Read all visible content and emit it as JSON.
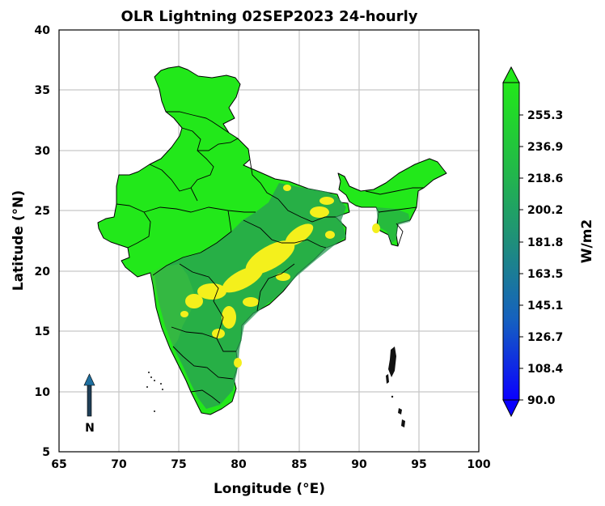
{
  "chart_data": {
    "type": "map",
    "title": "OLR Lightning 02SEP2023 24-hourly",
    "xlabel": "Longitude (°E)",
    "ylabel": "Latitude (°N)",
    "xlim": [
      65,
      100
    ],
    "ylim": [
      5,
      40
    ],
    "xticks": [
      "65",
      "70",
      "75",
      "80",
      "85",
      "90",
      "95",
      "100"
    ],
    "yticks": [
      "5",
      "10",
      "15",
      "20",
      "25",
      "30",
      "35",
      "40"
    ],
    "grid": true,
    "colorbar": {
      "label": "W/m2",
      "range": [
        90.0,
        273.7
      ],
      "ticks": [
        "90.0",
        "108.4",
        "126.7",
        "145.1",
        "163.5",
        "181.8",
        "200.2",
        "218.6",
        "236.9",
        "255.3"
      ],
      "extend": "both",
      "colors": [
        "#0a00ff",
        "#1560c0",
        "#1f8f7a",
        "#22b84a",
        "#22e81a"
      ]
    },
    "lightning_color": "#f4f01c",
    "north_arrow": {
      "label": "N",
      "lon": 67.5,
      "lat": 9.5
    }
  }
}
